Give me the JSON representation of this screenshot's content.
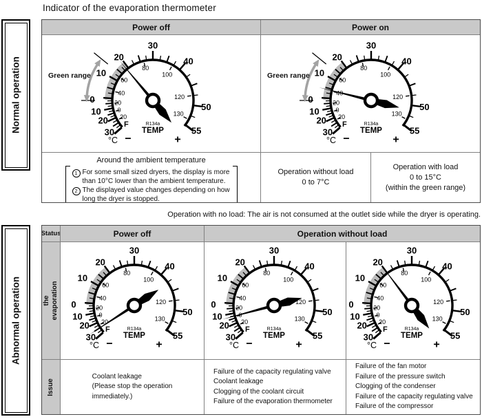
{
  "title": "Indicator of the evaporation thermometer",
  "colors": {
    "header_bg": "#c9c9c9",
    "grid_line": "#808080",
    "outer_border": "#4a4a4a",
    "green_band": "#bcbcbc",
    "green_arrow": "#a3a3a3",
    "needle": "#000000"
  },
  "normal": {
    "side_label": "Normal operation",
    "header": {
      "power_off": "Power off",
      "power_on": "Power on"
    },
    "green_label": "Green range",
    "notes": {
      "heading": "Around the ambient temperature",
      "items": [
        {
          "num": "1",
          "text": "For some small sized dryers, the display is more than 10°C lower than the ambient temperature."
        },
        {
          "num": "2",
          "text": "The displayed value changes depending on how long the dryer is stopped."
        }
      ]
    },
    "cells": {
      "without_load": "Operation without load\n0 to 7°C",
      "with_load": "Operation with load\n0 to 15°C\n(within the green range)"
    }
  },
  "caption": "Operation with no load: The air is not consumed at the outlet side while the dryer is operating.",
  "abnormal": {
    "side_label": "Abnormal operation",
    "header": {
      "status": "Status",
      "power_off": "Power off",
      "without_load": "Operation without load"
    },
    "row_labels": {
      "indicator": "Indicator of the\nevaporation thermometer",
      "issue": "Issue"
    },
    "issues": [
      "Coolant leakage\n(Please stop the operation\nimmediately.)",
      "Failure of the capacity regulating valve\nCoolant leakage\nClogging of the coolant circuit\nFailure of the evaporation thermometer",
      "Failure of the fan motor\nFailure of the pressure switch\nClogging of the condenser\nFailure of the capacity regulating valve\nFailure of the compressor"
    ]
  },
  "gauge": {
    "c_labels": [
      "30",
      "20",
      "10",
      "0",
      "10",
      "20",
      "30",
      "40",
      "50",
      "55"
    ],
    "f_labels": [
      "20",
      "0",
      "20",
      "40",
      "60",
      "80",
      "100",
      "120",
      "130"
    ],
    "f_unit": "F",
    "c_unit": "°C",
    "minus": "−",
    "plus": "+",
    "refrigerant": "R134a",
    "temp_label": "TEMP",
    "readings": {
      "normal_power_off": {
        "needle_deg": 130,
        "tip_len": 75,
        "green_range": true
      },
      "normal_power_on": {
        "needle_deg": 166,
        "tip_len": 78,
        "green_range": true
      },
      "abnormal_power_off": {
        "needle_deg": 213,
        "tip_len": 78,
        "green_range": false
      },
      "abnormal_no_load_1": {
        "needle_deg": 195,
        "tip_len": 78,
        "green_range": false
      },
      "abnormal_no_load_2": {
        "needle_deg": 127,
        "tip_len": 74,
        "green_range": false
      }
    }
  }
}
